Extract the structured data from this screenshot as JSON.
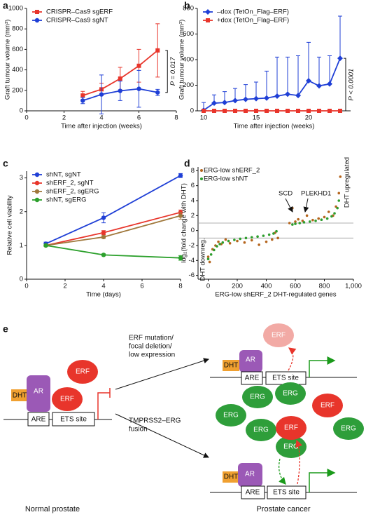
{
  "panels": [
    "a",
    "b",
    "c",
    "d",
    "e"
  ],
  "chart_data": [
    {
      "type": "line",
      "x_label": "Time after injection (weeks)",
      "y_label": "Graft tumour volume (mm³)",
      "xlim": [
        0,
        8
      ],
      "xticks": [
        0,
        2,
        4,
        6,
        8
      ],
      "ylim": [
        0,
        1000
      ],
      "yticks": [
        0,
        200,
        400,
        600,
        800,
        1000
      ],
      "legend": "upper left",
      "error_bars": "both",
      "annotation": "P = 0.017",
      "series": [
        {
          "name": "CRISPR–Cas9 sgERF",
          "color": "#e8352b",
          "marker": "square",
          "x": [
            3,
            4,
            5,
            6,
            7
          ],
          "values": [
            150,
            210,
            315,
            440,
            590
          ],
          "errors": [
            40,
            60,
            110,
            160,
            260
          ]
        },
        {
          "name": "CRISPR–Cas9 sgNT",
          "color": "#1f3fd6",
          "marker": "circle",
          "x": [
            3,
            4,
            5,
            6,
            7
          ],
          "values": [
            100,
            160,
            195,
            215,
            180
          ],
          "errors": [
            30,
            190,
            95,
            180,
            30
          ]
        }
      ]
    },
    {
      "type": "line",
      "x_label": "Time after injection (weeks)",
      "y_label": "Graft tumour volume (mm³)",
      "xlim": [
        9.4,
        24
      ],
      "xticks": [
        10,
        15,
        20
      ],
      "ylim": [
        0,
        800
      ],
      "yticks": [
        0,
        200,
        400,
        600,
        800
      ],
      "legend": "upper left",
      "error_bars": "upper",
      "annotation": "P < 0.0001",
      "series": [
        {
          "name": "–dox (TetOn_Flag–ERF)",
          "color": "#1f3fd6",
          "marker": "diamond",
          "x": [
            10,
            11,
            12,
            13,
            14,
            15,
            16,
            17,
            18,
            19,
            20,
            21,
            22,
            23
          ],
          "values": [
            5,
            60,
            65,
            80,
            90,
            95,
            100,
            115,
            130,
            120,
            235,
            195,
            210,
            410
          ],
          "errors": [
            60,
            65,
            85,
            95,
            115,
            130,
            210,
            305,
            290,
            310,
            300,
            225,
            220,
            330
          ]
        },
        {
          "name": "+dox (TetOn_Flag–ERF)",
          "color": "#e8352b",
          "marker": "square",
          "x": [
            10,
            11,
            12,
            13,
            14,
            15,
            16,
            17,
            18,
            19,
            20,
            21,
            22,
            23
          ],
          "values": [
            0,
            0,
            0,
            0,
            0,
            0,
            0,
            0,
            0,
            0,
            0,
            0,
            0,
            0
          ]
        }
      ]
    },
    {
      "type": "line",
      "x_label": "Time (days)",
      "y_label": "Relative cell viability",
      "xlim": [
        0,
        8
      ],
      "xticks": [
        0,
        2,
        4,
        6,
        8
      ],
      "ylim": [
        0,
        3.2
      ],
      "yticks": [
        0,
        1,
        2,
        3
      ],
      "legend": "upper left",
      "error_bars": "both",
      "series": [
        {
          "name": "shNT, sgNT",
          "color": "#1f3fd6",
          "marker": "circle",
          "x": [
            1,
            4,
            8
          ],
          "values": [
            1.05,
            1.82,
            3.07
          ],
          "errors": [
            0.05,
            0.15,
            0.06
          ]
        },
        {
          "name": "shERF_2, sgNT",
          "color": "#e8352b",
          "marker": "circle",
          "x": [
            1,
            4,
            8
          ],
          "values": [
            1,
            1.38,
            1.98
          ],
          "errors": [
            0.03,
            0.06,
            0.07
          ]
        },
        {
          "name": "shERF_2, sgERG",
          "color": "#a0783c",
          "marker": "circle",
          "x": [
            1,
            4,
            8
          ],
          "values": [
            1,
            1.25,
            1.88
          ],
          "errors": [
            0.03,
            0.04,
            0.1
          ]
        },
        {
          "name": "shNT, sgERG",
          "color": "#2ca02c",
          "marker": "circle",
          "x": [
            1,
            4,
            8
          ],
          "values": [
            1,
            0.72,
            0.63
          ],
          "errors": [
            0.03,
            0.03,
            0.07
          ]
        }
      ]
    },
    {
      "type": "scatter",
      "x_label": "ERG-low shERF_2 DHT-regulated genes",
      "y_label": "log₂(fold change with DHT)",
      "xlim": [
        -70,
        1000
      ],
      "xticks": [
        0,
        200,
        400,
        600,
        800,
        {
          "value": 1000,
          "label": "1,000"
        }
      ],
      "ylim": [
        -6.5,
        8.5
      ],
      "yticks": [
        -6,
        -4,
        -2,
        0,
        2,
        4,
        6,
        8
      ],
      "hlines": [
        1,
        -1
      ],
      "legend": "upper left",
      "annotations": [
        "SCD",
        "PLEKHD1",
        "DHT downreg.",
        "DHT upregulated"
      ],
      "series": [
        {
          "name": "ERG-low shERF_2",
          "color": "#b5651d",
          "x": [
            0,
            10,
            30,
            50,
            70,
            90,
            120,
            150,
            200,
            250,
            300,
            350,
            400,
            440,
            460,
            480,
            560,
            580,
            600,
            620,
            650,
            680,
            720,
            760,
            800,
            830,
            860,
            880,
            900,
            910
          ],
          "values": [
            -3.5,
            -4.2,
            -2.5,
            -2.0,
            -1.5,
            -1.8,
            -1.2,
            -1.7,
            -1.4,
            -1.6,
            -1.3,
            -1.9,
            -1.5,
            -1.2,
            -0.3,
            -1.0,
            1.0,
            3.0,
            1.2,
            1.5,
            1.3,
            2.0,
            1.4,
            1.6,
            1.8,
            2.5,
            2.0,
            3.2,
            5.0,
            7.2
          ]
        },
        {
          "name": "ERG-low shNT",
          "color": "#2e9e2e",
          "x": [
            0,
            20,
            40,
            60,
            80,
            100,
            140,
            180,
            220,
            260,
            300,
            340,
            380,
            420,
            450,
            470,
            580,
            600,
            630,
            660,
            700,
            740,
            780,
            820,
            850,
            870,
            890,
            900
          ],
          "values": [
            -3.8,
            -3.2,
            -2.6,
            -2.1,
            -1.8,
            -1.6,
            -1.4,
            -1.25,
            -1.1,
            -1.0,
            -0.9,
            -0.8,
            -0.7,
            -0.55,
            -0.4,
            -0.1,
            0.8,
            0.9,
            1.0,
            1.1,
            1.2,
            1.3,
            1.45,
            1.6,
            1.9,
            2.3,
            3.0,
            4.0
          ]
        }
      ]
    }
  ],
  "diagram": {
    "normal": {
      "dht": "DHT",
      "ar": "AR",
      "erf": [
        "ERF",
        "ERF"
      ],
      "are": "ARE",
      "ets": "ETS site",
      "caption": "Normal prostate"
    },
    "arrow_top": [
      "ERF mutation/",
      "focal deletion/",
      "low expression"
    ],
    "arrow_bottom": [
      "TMPRSS2–ERG",
      "fusion"
    ],
    "cancer_top": {
      "dht": "DHT",
      "ar": "AR",
      "erf": "ERF",
      "are": "ARE",
      "ets": "ETS site"
    },
    "cancer_bottom": {
      "dht": "DHT",
      "ar": "AR",
      "are": "ARE",
      "ets": "ETS site",
      "erg": [
        "ERG",
        "ERG",
        "ERG",
        "ERG",
        "ERG",
        "ERG"
      ],
      "erf": [
        "ERF",
        "ERF"
      ]
    },
    "caption": "Prostate cancer"
  }
}
